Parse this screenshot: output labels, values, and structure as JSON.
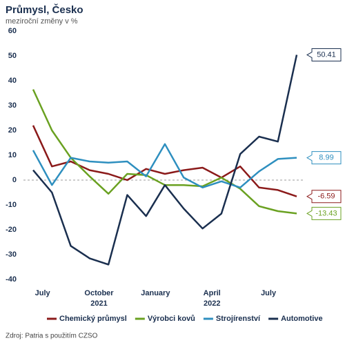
{
  "chart_data": {
    "type": "line",
    "title": "Průmysl, Česko",
    "subtitle": "meziroční změny v %",
    "source": "Zdroj: Patria s použitím CZSO",
    "categories": [
      "July",
      null,
      null,
      "October",
      null,
      null,
      "January",
      null,
      null,
      "April",
      null,
      null,
      "July",
      null,
      null
    ],
    "x_group_labels": [
      {
        "label": "2021",
        "category": 3
      },
      {
        "label": "2022",
        "category": 9
      }
    ],
    "ylim": [
      -40,
      60
    ],
    "yticks": [
      -40,
      -30,
      -20,
      -10,
      0,
      10,
      20,
      30,
      40,
      50,
      60
    ],
    "zero_line": true,
    "end_labels": true,
    "series": [
      {
        "name": "Chemický průmysl",
        "color": "#8b1a1a",
        "values": [
          22,
          5.5,
          7.5,
          4,
          2.5,
          0,
          4.5,
          2.5,
          4,
          5,
          1,
          5.5,
          -3,
          -4,
          -6.59
        ]
      },
      {
        "name": "Výrobci kovů",
        "color": "#6aa121",
        "values": [
          36.5,
          20,
          9,
          1.5,
          -5.5,
          2.5,
          2,
          -2,
          -2,
          -2.5,
          1,
          -3.5,
          -10.5,
          -12.5,
          -13.43
        ]
      },
      {
        "name": "Strojírenství",
        "color": "#2e8fbf",
        "values": [
          12,
          -2,
          9,
          7.5,
          7,
          7.5,
          1.5,
          14.5,
          1,
          -3,
          -0.5,
          -3,
          3.5,
          8.5,
          8.99
        ]
      },
      {
        "name": "Automotive",
        "color": "#1a2f4f",
        "values": [
          4,
          -5,
          -26.5,
          -31.5,
          -34,
          -6,
          -14.5,
          -2,
          -11.5,
          -19.5,
          -13.5,
          10.5,
          17.5,
          15.5,
          50.41
        ]
      }
    ]
  }
}
